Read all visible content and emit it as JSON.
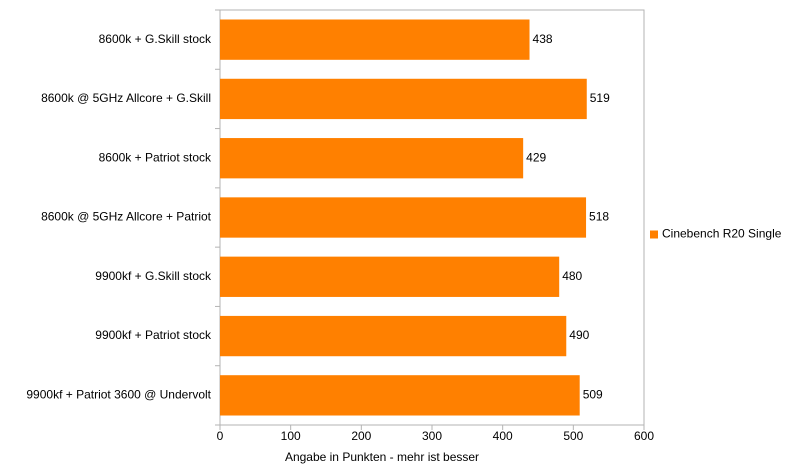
{
  "chart_data": {
    "type": "bar",
    "orientation": "horizontal",
    "categories": [
      "8600k + G.Skill stock",
      "8600k @ 5GHz Allcore + G.Skill",
      "8600k + Patriot stock",
      "8600k @ 5GHz Allcore + Patriot",
      "9900kf + G.Skill stock",
      "9900kf + Patriot stock",
      "9900kf + Patriot 3600 @ Undervolt"
    ],
    "series": [
      {
        "name": "Cinebench R20 Single",
        "color": "#ff8000",
        "values": [
          438,
          519,
          429,
          518,
          480,
          490,
          509
        ]
      }
    ],
    "xlabel": "Angabe in Punkten - mehr ist besser",
    "xlim": [
      0,
      600
    ],
    "xticks": [
      0,
      100,
      200,
      300,
      400,
      500,
      600
    ],
    "grid": false,
    "legend": "right"
  }
}
